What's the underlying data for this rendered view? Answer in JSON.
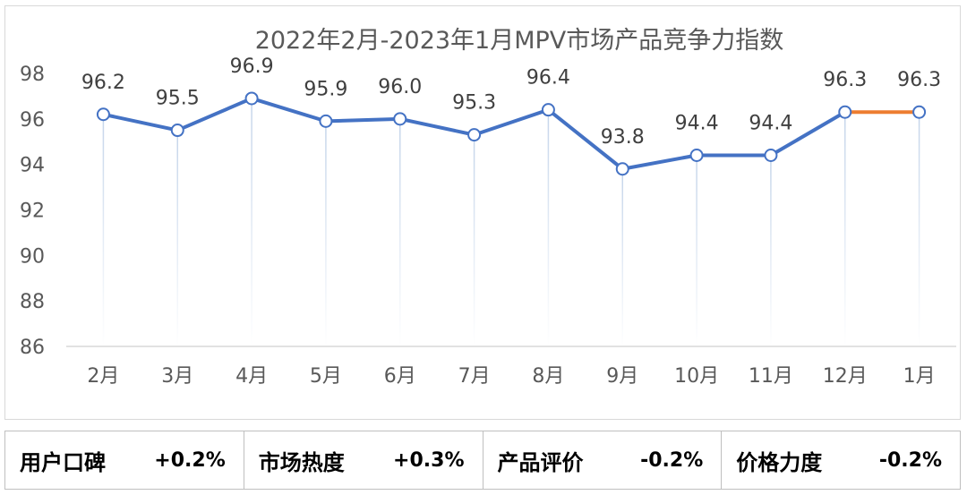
{
  "chart_data": {
    "type": "line",
    "title": "2022年2月-2023年1月MPV市场产品竞争力指数",
    "categories": [
      "2月",
      "3月",
      "4月",
      "5月",
      "6月",
      "7月",
      "8月",
      "9月",
      "10月",
      "11月",
      "12月",
      "1月"
    ],
    "series": [
      {
        "values": [
          96.2,
          95.5,
          96.9,
          95.9,
          96.0,
          95.3,
          96.4,
          93.8,
          94.4,
          94.4,
          96.3,
          96.3
        ]
      }
    ],
    "data_labels": [
      "96.2",
      "95.5",
      "96.9",
      "95.9",
      "96.0",
      "95.3",
      "96.4",
      "93.8",
      "94.4",
      "94.4",
      "96.3",
      "96.3"
    ],
    "ylim": [
      86,
      98
    ],
    "yticks": [
      "98",
      "96",
      "94",
      "92",
      "90",
      "88",
      "86"
    ],
    "grid": false,
    "colors": {
      "line": "#4472c4",
      "last_segment": "#ed7d31",
      "drop_lines": "#c5d5ea"
    }
  },
  "metrics": [
    {
      "name": "用户口碑",
      "value": "+0.2%"
    },
    {
      "name": "市场热度",
      "value": "+0.3%"
    },
    {
      "name": "产品评价",
      "value": "-0.2%"
    },
    {
      "name": "价格力度",
      "value": "-0.2%"
    }
  ]
}
